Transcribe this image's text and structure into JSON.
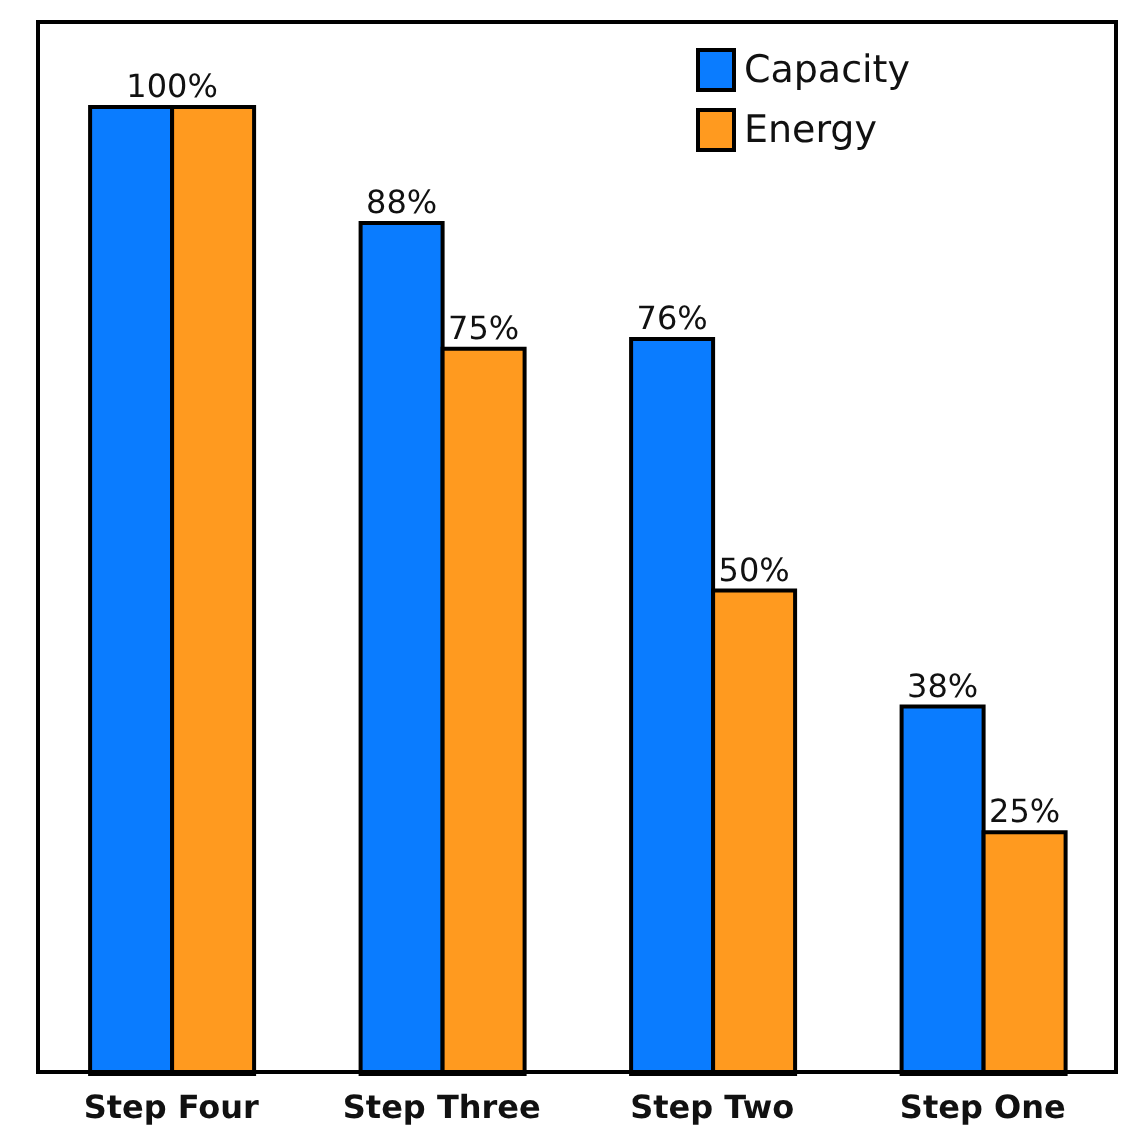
{
  "chart_data": {
    "type": "bar",
    "categories": [
      "Step Four",
      "Step Three",
      "Step Two",
      "Step One"
    ],
    "series": [
      {
        "name": "Capacity",
        "color": "#0a7cff",
        "values": [
          100,
          88,
          76,
          38
        ],
        "value_labels": [
          "100%",
          "88%",
          "76%",
          "38%"
        ]
      },
      {
        "name": "Energy",
        "color": "#ff9a1f",
        "values": [
          100,
          75,
          50,
          25
        ],
        "value_labels": [
          null,
          "75%",
          "50%",
          "25%"
        ]
      }
    ],
    "legend": "top right",
    "grid": false
  }
}
